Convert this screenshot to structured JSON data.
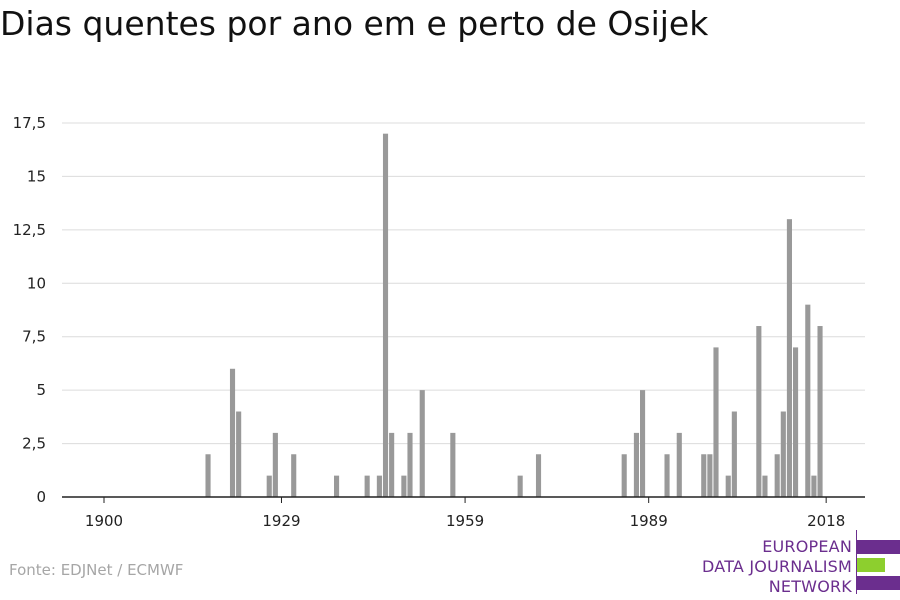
{
  "page": {
    "title": "Dias quentes por ano em e perto de Osijek",
    "source": "Fonte: EDJNet / ECMWF"
  },
  "logo": {
    "lines": [
      "EUROPEAN",
      "DATA JOURNALISM",
      "NETWORK"
    ],
    "colors": {
      "purple": "#6b2e8e",
      "green": "#8dcf2e"
    }
  },
  "chart_data": {
    "type": "bar",
    "title": "Dias quentes por ano em e perto de Osijek",
    "xlabel": "",
    "ylabel": "",
    "xlim": [
      1894,
      2025
    ],
    "ylim": [
      0,
      17.5
    ],
    "x_ticks": [
      1900,
      1929,
      1959,
      1989,
      2018
    ],
    "x_tick_labels": [
      "1900",
      "1929",
      "1959",
      "1989",
      "2018"
    ],
    "y_ticks": [
      0,
      2.5,
      5,
      7.5,
      10,
      12.5,
      15,
      17.5
    ],
    "y_tick_labels": [
      "0",
      "2,5",
      "5",
      "7,5",
      "10",
      "12,5",
      "15",
      "17,5"
    ],
    "grid": true,
    "bar_color": "#999999",
    "points": [
      {
        "year": 1917,
        "value": 2
      },
      {
        "year": 1921,
        "value": 6
      },
      {
        "year": 1922,
        "value": 4
      },
      {
        "year": 1927,
        "value": 1
      },
      {
        "year": 1928,
        "value": 3
      },
      {
        "year": 1931,
        "value": 2
      },
      {
        "year": 1938,
        "value": 1
      },
      {
        "year": 1943,
        "value": 1
      },
      {
        "year": 1945,
        "value": 1
      },
      {
        "year": 1946,
        "value": 17
      },
      {
        "year": 1947,
        "value": 3
      },
      {
        "year": 1949,
        "value": 1
      },
      {
        "year": 1950,
        "value": 3
      },
      {
        "year": 1952,
        "value": 5
      },
      {
        "year": 1957,
        "value": 3
      },
      {
        "year": 1968,
        "value": 1
      },
      {
        "year": 1971,
        "value": 2
      },
      {
        "year": 1985,
        "value": 2
      },
      {
        "year": 1987,
        "value": 3
      },
      {
        "year": 1988,
        "value": 5
      },
      {
        "year": 1992,
        "value": 2
      },
      {
        "year": 1994,
        "value": 3
      },
      {
        "year": 1998,
        "value": 2
      },
      {
        "year": 1999,
        "value": 2
      },
      {
        "year": 2000,
        "value": 7
      },
      {
        "year": 2002,
        "value": 1
      },
      {
        "year": 2003,
        "value": 4
      },
      {
        "year": 2007,
        "value": 8
      },
      {
        "year": 2008,
        "value": 1
      },
      {
        "year": 2010,
        "value": 2
      },
      {
        "year": 2011,
        "value": 4
      },
      {
        "year": 2012,
        "value": 13
      },
      {
        "year": 2013,
        "value": 7
      },
      {
        "year": 2015,
        "value": 9
      },
      {
        "year": 2016,
        "value": 1
      },
      {
        "year": 2017,
        "value": 8
      }
    ]
  }
}
